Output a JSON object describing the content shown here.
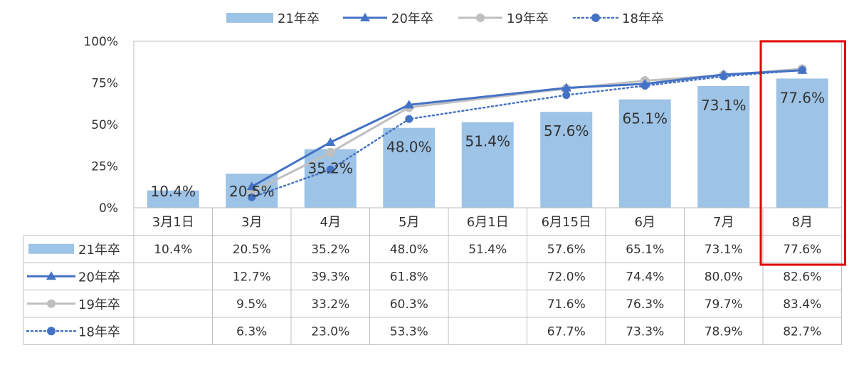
{
  "chart_data": {
    "type": "bar",
    "categories": [
      "3月1日",
      "3月",
      "4月",
      "5月",
      "6月1日",
      "6月15日",
      "6月",
      "7月",
      "8月"
    ],
    "y_ticks": [
      "0%",
      "25%",
      "50%",
      "75%",
      "100%"
    ],
    "ylim": [
      0,
      100
    ],
    "legend_position": "top-center",
    "series": [
      {
        "name": "21年卒",
        "type": "bar",
        "color": "#9DC3E6",
        "values": [
          10.4,
          20.5,
          35.2,
          48.0,
          51.4,
          57.6,
          65.1,
          73.1,
          77.6
        ],
        "labels": [
          "10.4%",
          "20.5%",
          "35.2%",
          "48.0%",
          "51.4%",
          "57.6%",
          "65.1%",
          "73.1%",
          "77.6%"
        ]
      },
      {
        "name": "20年卒",
        "type": "line",
        "marker": "triangle",
        "dash": "solid",
        "color": "#4472C4",
        "values": [
          null,
          12.7,
          39.3,
          61.8,
          null,
          72.0,
          74.4,
          80.0,
          82.6
        ],
        "labels": [
          "",
          "12.7%",
          "39.3%",
          "61.8%",
          "",
          "72.0%",
          "74.4%",
          "80.0%",
          "82.6%"
        ]
      },
      {
        "name": "19年卒",
        "type": "line",
        "marker": "circle",
        "dash": "solid",
        "color": "#BFBFBF",
        "values": [
          null,
          9.5,
          33.2,
          60.3,
          null,
          71.6,
          76.3,
          79.7,
          83.4
        ],
        "labels": [
          "",
          "9.5%",
          "33.2%",
          "60.3%",
          "",
          "71.6%",
          "76.3%",
          "79.7%",
          "83.4%"
        ]
      },
      {
        "name": "18年卒",
        "type": "line",
        "marker": "circle",
        "dash": "dotted",
        "color": "#4472C4",
        "values": [
          null,
          6.3,
          23.0,
          53.3,
          null,
          67.7,
          73.3,
          78.9,
          82.7
        ],
        "labels": [
          "",
          "6.3%",
          "23.0%",
          "53.3%",
          "",
          "67.7%",
          "73.3%",
          "78.9%",
          "82.7%"
        ]
      }
    ],
    "highlight": {
      "category": "8月",
      "color": "#E00000"
    },
    "grid": false
  }
}
